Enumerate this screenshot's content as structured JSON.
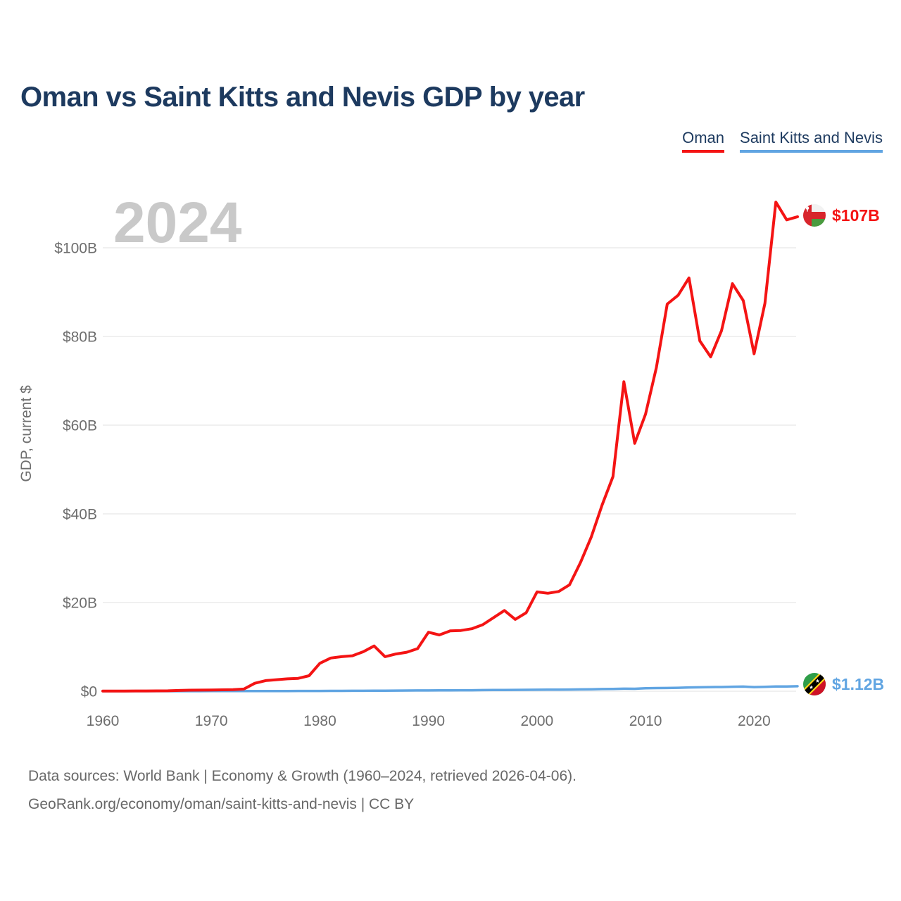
{
  "header": {
    "title": "Oman vs Saint Kitts and Nevis GDP by year"
  },
  "legend": {
    "items": [
      {
        "label": "Oman",
        "color": "#f41414"
      },
      {
        "label": "Saint Kitts and Nevis",
        "color": "#61a5e2"
      }
    ]
  },
  "watermark": "2024",
  "chart_data": {
    "type": "line",
    "title": "Oman vs Saint Kitts and Nevis GDP by year",
    "xlabel": "",
    "ylabel": "GDP, current $",
    "grid": true,
    "xlim": [
      1960,
      2024
    ],
    "ylim": [
      0,
      112
    ],
    "xticks": [
      1960,
      1970,
      1980,
      1990,
      2000,
      2010,
      2020
    ],
    "yticks": [
      {
        "value": 0,
        "label": "$0"
      },
      {
        "value": 20,
        "label": "$20B"
      },
      {
        "value": 40,
        "label": "$40B"
      },
      {
        "value": 60,
        "label": "$60B"
      },
      {
        "value": 80,
        "label": "$80B"
      },
      {
        "value": 100,
        "label": "$100B"
      }
    ],
    "years": [
      1960,
      1961,
      1962,
      1963,
      1964,
      1965,
      1966,
      1967,
      1968,
      1969,
      1970,
      1971,
      1972,
      1973,
      1974,
      1975,
      1976,
      1977,
      1978,
      1979,
      1980,
      1981,
      1982,
      1983,
      1984,
      1985,
      1986,
      1987,
      1988,
      1989,
      1990,
      1991,
      1992,
      1993,
      1994,
      1995,
      1996,
      1997,
      1998,
      1999,
      2000,
      2001,
      2002,
      2003,
      2004,
      2005,
      2006,
      2007,
      2008,
      2009,
      2010,
      2011,
      2012,
      2013,
      2014,
      2015,
      2016,
      2017,
      2018,
      2019,
      2020,
      2021,
      2022,
      2023,
      2024
    ],
    "series": [
      {
        "name": "Oman",
        "color": "#f41414",
        "end_label": "$107B",
        "values": [
          0.04,
          0.05,
          0.05,
          0.06,
          0.07,
          0.08,
          0.1,
          0.17,
          0.24,
          0.26,
          0.28,
          0.32,
          0.36,
          0.5,
          1.8,
          2.4,
          2.6,
          2.8,
          2.9,
          3.5,
          6.3,
          7.5,
          7.8,
          8.0,
          8.9,
          10.2,
          7.8,
          8.4,
          8.8,
          9.6,
          13.3,
          12.7,
          13.6,
          13.7,
          14.1,
          15.0,
          16.6,
          18.2,
          16.2,
          17.7,
          22.4,
          22.1,
          22.5,
          24.0,
          29.0,
          34.8,
          42.0,
          48.4,
          69.8,
          55.9,
          62.5,
          73.0,
          87.3,
          89.3,
          93.2,
          79.0,
          75.4,
          81.3,
          91.9,
          88.1,
          76.1,
          87.5,
          110.3,
          106.3,
          107.0
        ]
      },
      {
        "name": "Saint Kitts and Nevis",
        "color": "#61a5e2",
        "end_label": "$1.12B",
        "values": [
          0.012,
          0.013,
          0.014,
          0.015,
          0.016,
          0.017,
          0.018,
          0.02,
          0.021,
          0.023,
          0.024,
          0.027,
          0.03,
          0.034,
          0.038,
          0.043,
          0.044,
          0.048,
          0.057,
          0.064,
          0.068,
          0.075,
          0.083,
          0.088,
          0.098,
          0.11,
          0.12,
          0.14,
          0.16,
          0.17,
          0.18,
          0.19,
          0.21,
          0.22,
          0.23,
          0.25,
          0.27,
          0.29,
          0.3,
          0.32,
          0.33,
          0.35,
          0.36,
          0.38,
          0.42,
          0.45,
          0.5,
          0.53,
          0.57,
          0.56,
          0.69,
          0.72,
          0.73,
          0.77,
          0.85,
          0.89,
          0.94,
          0.96,
          1.01,
          1.05,
          0.93,
          0.99,
          1.07,
          1.08,
          1.12
        ]
      }
    ]
  },
  "footer": {
    "line1": "Data sources: World Bank | Economy & Growth (1960–2024, retrieved 2026-04-06).",
    "line2": "GeoRank.org/economy/oman/saint-kitts-and-nevis | CC BY"
  }
}
